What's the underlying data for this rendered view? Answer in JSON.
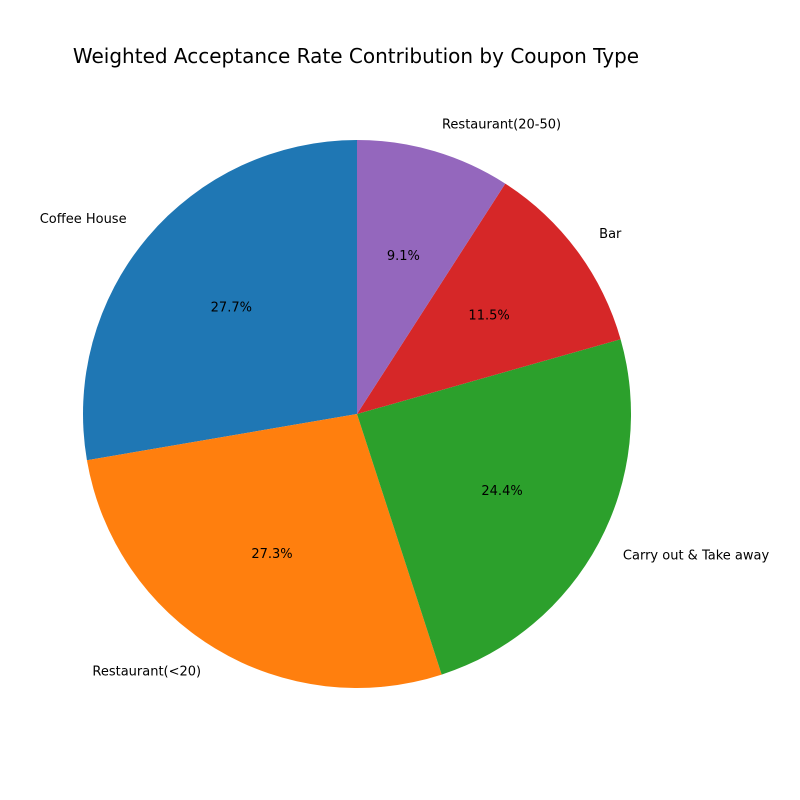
{
  "chart_data": {
    "type": "pie",
    "title": "Weighted Acceptance Rate Contribution by Coupon Type",
    "start_angle_deg": 90,
    "direction": "counterclockwise",
    "slices": [
      {
        "label": "Coffee House",
        "value": 27.7,
        "pct_label": "27.7%",
        "color": "#1f77b4"
      },
      {
        "label": "Restaurant(<20)",
        "value": 27.3,
        "pct_label": "27.3%",
        "color": "#ff7f0e"
      },
      {
        "label": "Carry out & Take away",
        "value": 24.4,
        "pct_label": "24.4%",
        "color": "#2ca02c"
      },
      {
        "label": "Bar",
        "value": 11.5,
        "pct_label": "11.5%",
        "color": "#d62728"
      },
      {
        "label": "Restaurant(20-50)",
        "value": 9.1,
        "pct_label": "9.1%",
        "color": "#9467bd"
      }
    ]
  }
}
